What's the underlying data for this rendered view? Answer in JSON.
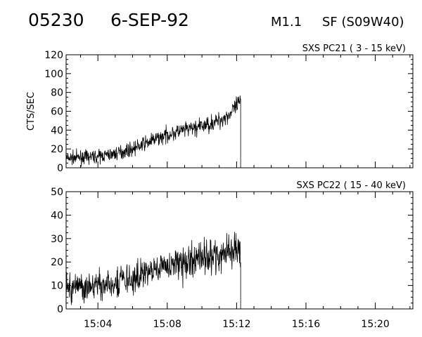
{
  "header": {
    "event_id": "05230",
    "date": "6-SEP-92",
    "flare_class": "M1.1",
    "flare_location": "SF (S09W40)"
  },
  "chart_data": [
    {
      "type": "line",
      "title": "SXS PC21   (  3 - 15 keV)",
      "ylabel": "CTS/SEC",
      "xlabel": "",
      "xlim": [
        "15:02:10",
        "15:22:10"
      ],
      "ylim": [
        0,
        120
      ],
      "yticks": [
        0,
        20,
        40,
        60,
        80,
        100,
        120
      ],
      "ytick_labels": [
        "0",
        "20",
        "40",
        "60",
        "80",
        "100",
        "120"
      ],
      "xtick_labels": [],
      "grid": false,
      "data_end": "15:12:14",
      "noise": 5,
      "series": [
        {
          "x": [
            "15:02:10",
            "15:03:00",
            "15:04:00",
            "15:05:00",
            "15:06:00",
            "15:07:00",
            "15:08:00",
            "15:09:00",
            "15:10:00",
            "15:11:00",
            "15:11:40",
            "15:12:14"
          ],
          "y": [
            10,
            11,
            12,
            15,
            20,
            28,
            35,
            40,
            44,
            50,
            58,
            70
          ]
        }
      ]
    },
    {
      "type": "line",
      "title": "SXS PC22   ( 15 - 40 keV)",
      "ylabel": "",
      "xlabel": "",
      "xlim": [
        "15:02:10",
        "15:22:10"
      ],
      "ylim": [
        0,
        50
      ],
      "yticks": [
        0,
        10,
        20,
        30,
        40,
        50
      ],
      "ytick_labels": [
        "0",
        "10",
        "20",
        "30",
        "40",
        "50"
      ],
      "xtick_labels": [
        {
          "x": "15:04:00",
          "label": "15:04"
        },
        {
          "x": "15:08:00",
          "label": "15:08"
        },
        {
          "x": "15:12:00",
          "label": "15:12"
        },
        {
          "x": "15:16:00",
          "label": "15:16"
        },
        {
          "x": "15:20:00",
          "label": "15:20"
        }
      ],
      "grid": false,
      "data_end": "15:12:14",
      "noise": 4,
      "series": [
        {
          "x": [
            "15:02:10",
            "15:03:00",
            "15:04:00",
            "15:05:00",
            "15:06:00",
            "15:07:00",
            "15:08:00",
            "15:09:00",
            "15:10:00",
            "15:11:00",
            "15:12:14"
          ],
          "y": [
            9,
            9,
            10,
            11,
            13,
            16,
            18,
            20,
            22,
            23,
            25
          ]
        }
      ]
    }
  ]
}
